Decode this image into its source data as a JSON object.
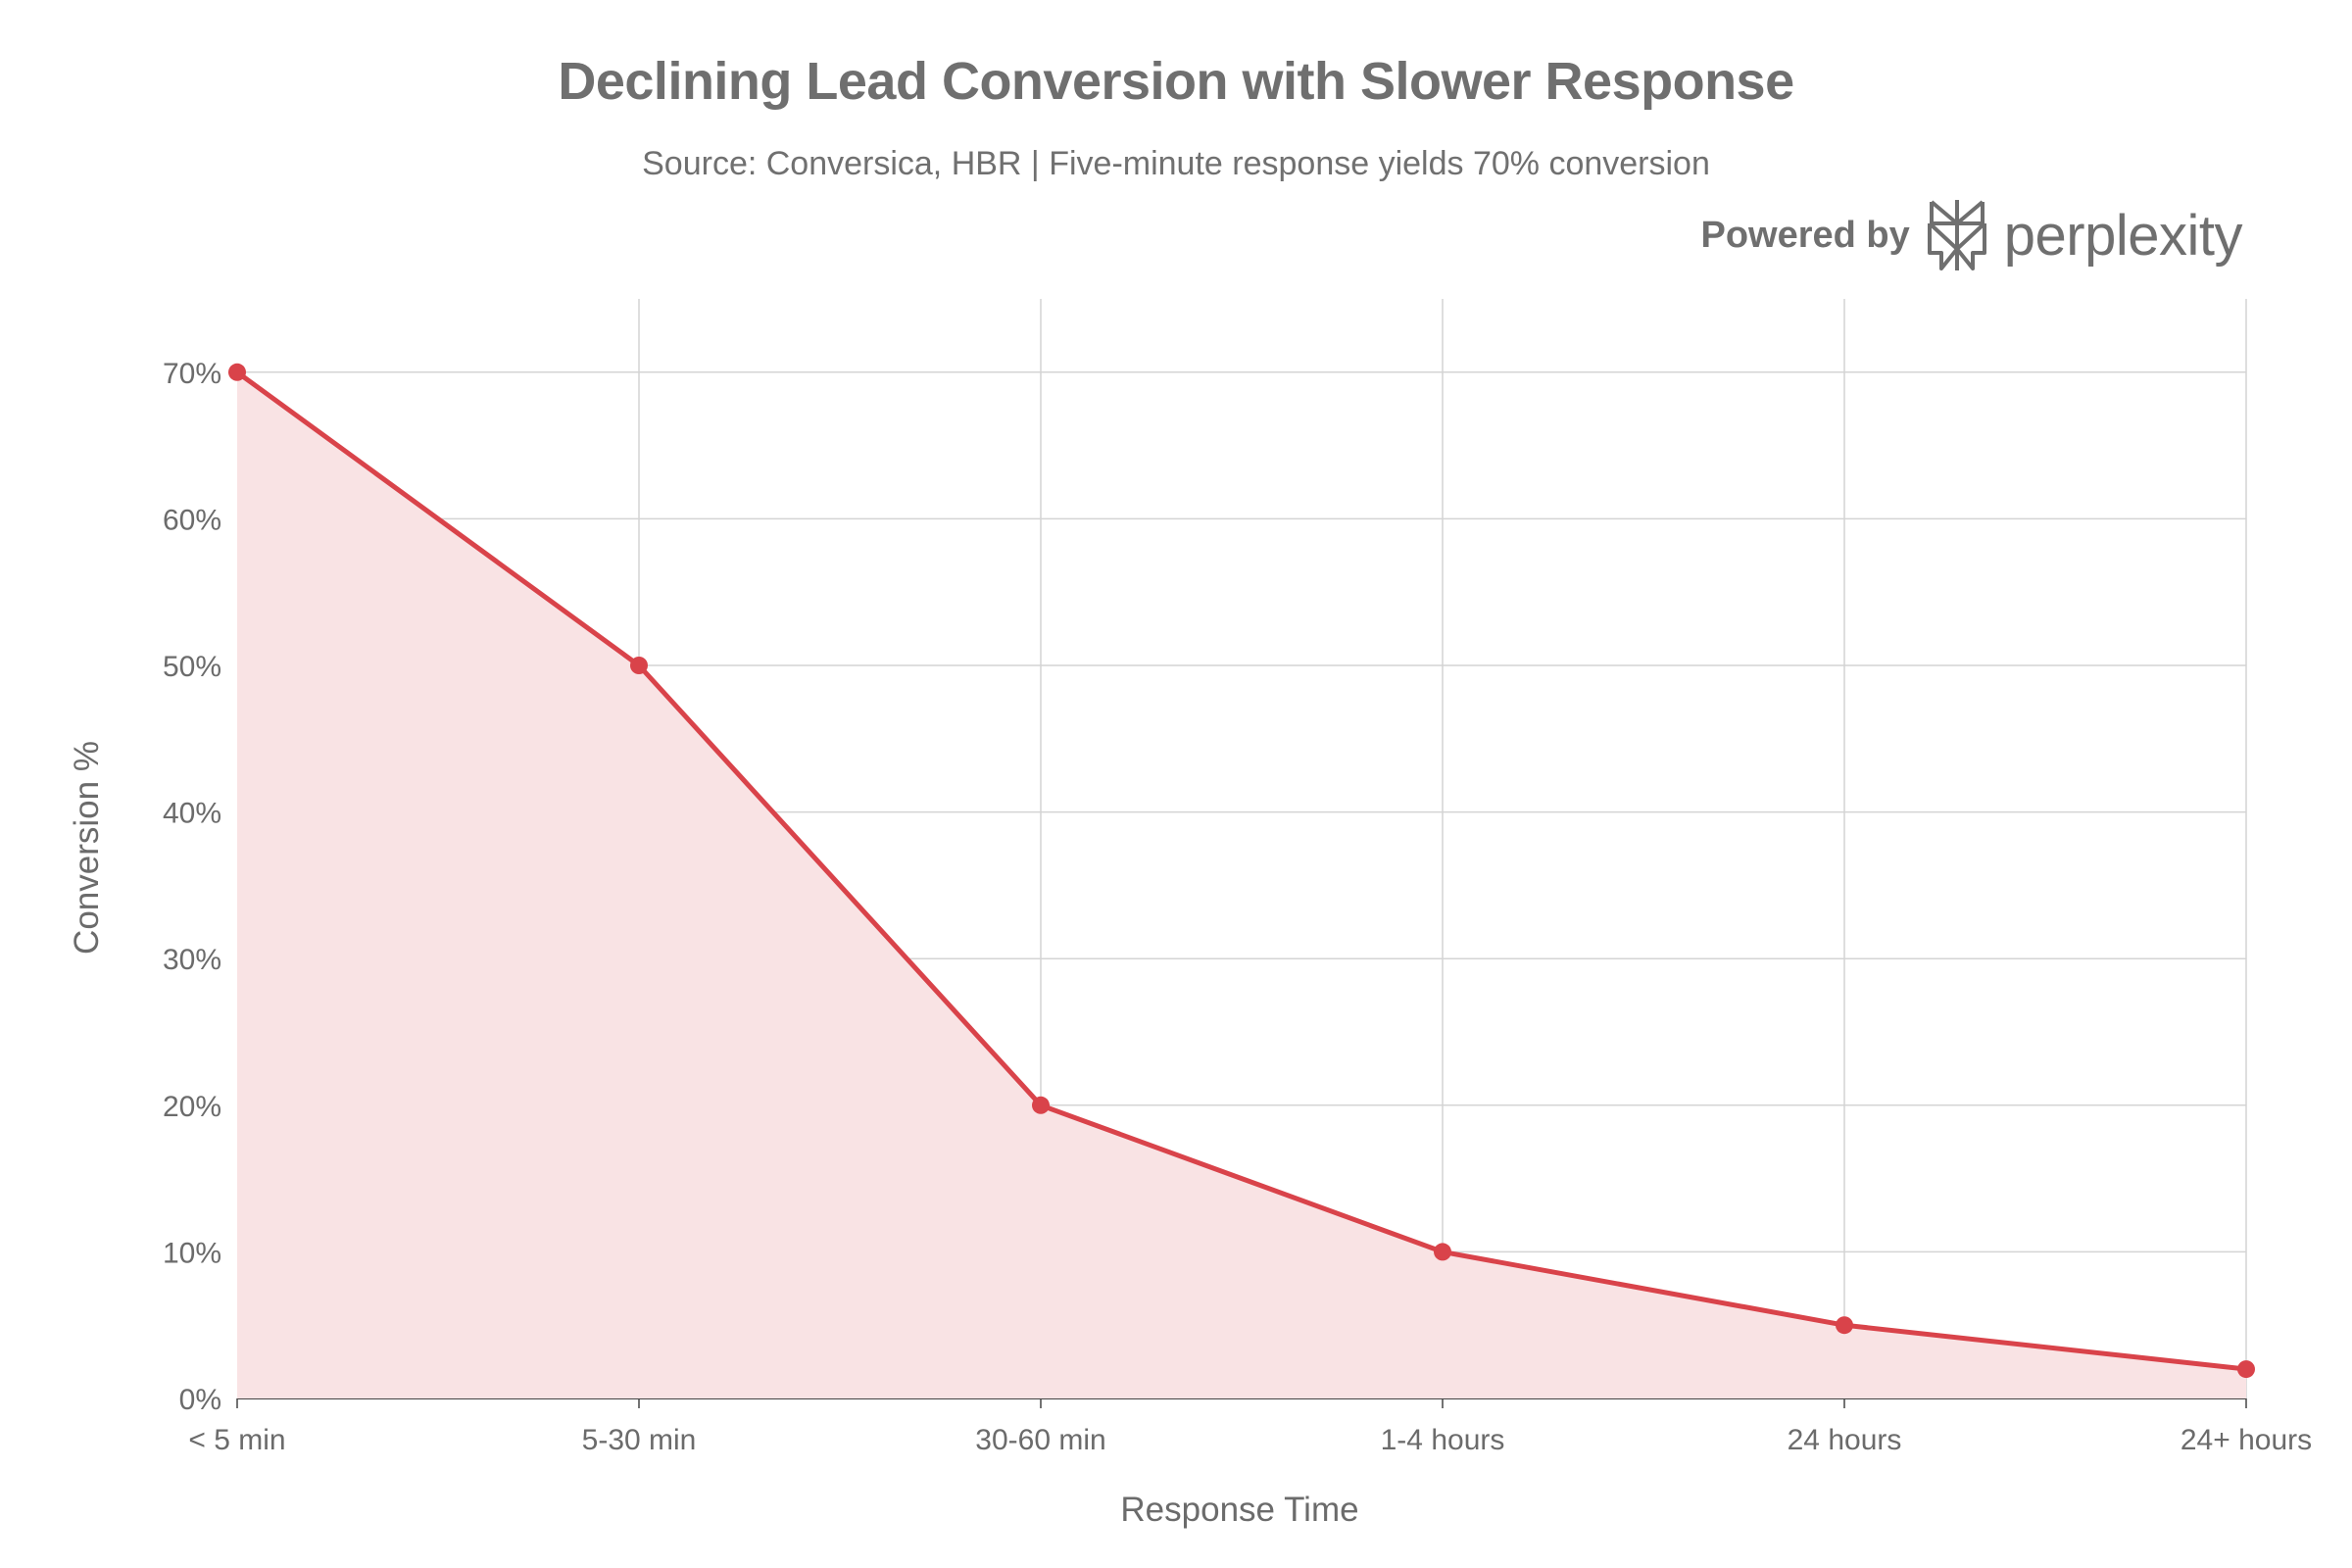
{
  "chart_data": {
    "type": "area",
    "title": "Declining Lead Conversion with Slower Response",
    "subtitle": "Source: Conversica, HBR | Five-minute response yields 70% conversion",
    "xlabel": "Response Time",
    "ylabel": "Conversion %",
    "categories": [
      "< 5 min",
      "5-30 min",
      "30-60 min",
      "1-4 hours",
      "24 hours",
      "24+ hours"
    ],
    "values": [
      70,
      50,
      20,
      10,
      5,
      2
    ],
    "ylim": [
      0,
      75
    ],
    "yticks": [
      0,
      10,
      20,
      30,
      40,
      50,
      60,
      70
    ],
    "ytick_labels": [
      "0%",
      "10%",
      "20%",
      "30%",
      "40%",
      "50%",
      "60%",
      "70%"
    ],
    "grid": true,
    "colors": {
      "line": "#d9434a",
      "fill": "#f9e3e4",
      "grid": "#d4d4d4",
      "axis": "#444444"
    }
  },
  "brand": {
    "powered_by": "Powered by",
    "name": "perplexity",
    "icon": "perplexity-logo-icon"
  }
}
